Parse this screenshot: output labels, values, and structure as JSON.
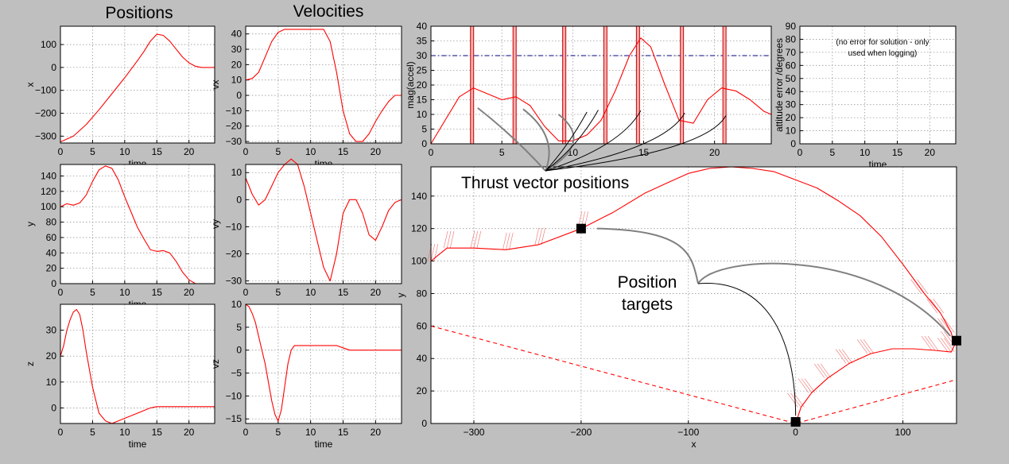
{
  "titles": {
    "positions": "Positions",
    "velocities": "Velocities"
  },
  "annotations": {
    "thrust": "Thrust vector positions",
    "targets_line1": "Position",
    "targets_line2": "targets",
    "note_line1": "(no error for solution - only",
    "note_line2": "used when logging)"
  },
  "colors": {
    "series": "#ff0000",
    "limit": "#000080",
    "path_grey": "#808080",
    "path_black": "#000000",
    "bg": "#bfbfbf"
  },
  "chart_data": [
    {
      "id": "x",
      "type": "line",
      "xlabel": "time",
      "ylabel": "x",
      "xlim": [
        0,
        24
      ],
      "ylim": [
        -330,
        180
      ],
      "xticks": [
        0,
        5,
        10,
        15,
        20
      ],
      "yticks": [
        100,
        0,
        -100,
        -200,
        -300
      ],
      "series": [
        {
          "x": [
            0,
            2,
            4,
            6,
            8,
            10,
            12,
            13,
            14,
            15,
            16,
            17,
            18,
            19,
            20,
            21,
            22,
            23,
            24
          ],
          "y": [
            -325,
            -300,
            -250,
            -185,
            -115,
            -45,
            30,
            70,
            115,
            145,
            140,
            115,
            80,
            45,
            20,
            5,
            0,
            0,
            0
          ]
        }
      ]
    },
    {
      "id": "vx",
      "type": "line",
      "xlabel": "time",
      "ylabel": "vx",
      "xlim": [
        0,
        24
      ],
      "ylim": [
        -31,
        45
      ],
      "xticks": [
        0,
        5,
        10,
        15,
        20
      ],
      "yticks": [
        40,
        30,
        20,
        10,
        0,
        -10,
        -20,
        -30
      ],
      "series": [
        {
          "x": [
            0,
            1,
            2,
            3,
            4,
            5,
            6,
            8,
            10,
            12,
            13,
            14,
            15,
            16,
            17,
            18,
            19,
            20,
            21,
            22,
            23,
            24
          ],
          "y": [
            10,
            11,
            15,
            25,
            35,
            41,
            43,
            43,
            43,
            43,
            35,
            15,
            -10,
            -25,
            -30,
            -30,
            -25,
            -17,
            -10,
            -4,
            0,
            0
          ]
        }
      ]
    },
    {
      "id": "mag",
      "type": "line",
      "xlabel": "",
      "ylabel": "mag(accel)",
      "xlim": [
        0,
        24
      ],
      "ylim": [
        0,
        40
      ],
      "xticks": [
        0,
        5,
        10,
        15,
        20
      ],
      "yticks": [
        40,
        35,
        30,
        25,
        20,
        15,
        10,
        5,
        0
      ],
      "limit": 30,
      "thrust_times": [
        2.9,
        5.9,
        9.4,
        12.3,
        14.6,
        17.7,
        20.7
      ],
      "series": [
        {
          "x": [
            0,
            1,
            2,
            3,
            4,
            5,
            6,
            7,
            8,
            9,
            10,
            11,
            12,
            13,
            14,
            14.8,
            15.5,
            16.5,
            17.5,
            18.5,
            19.5,
            20.5,
            21.5,
            22.5,
            23.5,
            24
          ],
          "y": [
            0,
            8,
            16,
            19,
            17,
            15,
            16,
            13,
            6,
            1,
            1,
            3,
            8,
            18,
            30,
            36,
            33,
            20,
            8,
            7,
            15,
            19,
            18,
            15,
            11,
            10
          ]
        }
      ]
    },
    {
      "id": "att",
      "type": "line",
      "xlabel": "time",
      "ylabel": "attitude error /degrees",
      "xlim": [
        0,
        24
      ],
      "ylim": [
        0,
        90
      ],
      "xticks": [
        0,
        5,
        10,
        15,
        20
      ],
      "yticks": [
        90,
        80,
        70,
        60,
        50,
        40,
        30,
        20,
        10,
        0
      ],
      "series": []
    },
    {
      "id": "y",
      "type": "line",
      "xlabel": "time",
      "ylabel": "y",
      "xlim": [
        0,
        24
      ],
      "ylim": [
        0,
        155
      ],
      "xticks": [
        0,
        5,
        10,
        15,
        20
      ],
      "yticks": [
        140,
        120,
        100,
        80,
        60,
        40,
        20,
        0
      ],
      "series": [
        {
          "x": [
            0,
            1,
            2,
            3,
            4,
            5,
            6,
            7,
            8,
            9,
            10,
            11,
            12,
            13,
            14,
            15,
            16,
            17,
            18,
            19,
            20,
            21,
            22,
            23,
            24
          ],
          "y": [
            100,
            104,
            102,
            105,
            115,
            133,
            148,
            153,
            150,
            135,
            113,
            93,
            73,
            58,
            44,
            42,
            43,
            40,
            29,
            15,
            5,
            0,
            0,
            0,
            0
          ]
        }
      ]
    },
    {
      "id": "vy",
      "type": "line",
      "xlabel": "",
      "ylabel": "vy",
      "xlim": [
        0,
        24
      ],
      "ylim": [
        -31,
        13
      ],
      "xticks": [
        0,
        5,
        10,
        15,
        20
      ],
      "yticks": [
        10,
        0,
        -10,
        -20,
        -30
      ],
      "series": [
        {
          "x": [
            0,
            1,
            2,
            3,
            4,
            5,
            6,
            7,
            8,
            9,
            10,
            11,
            12,
            13,
            14,
            15,
            16,
            17,
            18,
            19,
            20,
            21,
            22,
            23,
            24
          ],
          "y": [
            8,
            2,
            -2,
            0,
            5,
            10,
            13,
            15,
            13,
            5,
            -5,
            -15,
            -25,
            -30,
            -20,
            -5,
            0,
            0,
            -5,
            -13,
            -15,
            -10,
            -4,
            -1,
            0
          ]
        }
      ]
    },
    {
      "id": "z",
      "type": "line",
      "xlabel": "time",
      "ylabel": "z",
      "xlim": [
        0,
        24
      ],
      "ylim": [
        -6,
        40
      ],
      "xticks": [
        0,
        5,
        10,
        15,
        20
      ],
      "yticks": [
        30,
        20,
        10,
        0
      ],
      "series": [
        {
          "x": [
            0,
            0.5,
            1,
            1.5,
            2,
            2.5,
            3,
            3.5,
            4,
            5,
            6,
            7,
            8,
            9,
            10,
            12,
            14,
            15,
            16,
            18,
            20,
            22,
            24
          ],
          "y": [
            20,
            24,
            30,
            34,
            37,
            38,
            36,
            30,
            22,
            8,
            -2,
            -5,
            -6,
            -5,
            -4,
            -2,
            0,
            0.5,
            0.5,
            0.5,
            0.5,
            0.5,
            0.5
          ]
        }
      ]
    },
    {
      "id": "vz",
      "type": "line",
      "xlabel": "time",
      "ylabel": "vz",
      "xlim": [
        0,
        24
      ],
      "ylim": [
        -16,
        10
      ],
      "xticks": [
        0,
        5,
        10,
        15,
        20
      ],
      "yticks": [
        10,
        5,
        0,
        -5,
        -10,
        -15
      ],
      "series": [
        {
          "x": [
            0,
            0.5,
            1,
            1.5,
            2,
            2.5,
            3,
            3.5,
            4,
            4.5,
            5,
            5.5,
            6,
            6.5,
            7,
            7.5,
            8,
            10,
            12,
            14,
            15,
            16,
            18,
            20,
            22,
            24
          ],
          "y": [
            10,
            9.5,
            8,
            6,
            3,
            0,
            -3,
            -7,
            -11,
            -14,
            -15.5,
            -13,
            -8,
            -3,
            0,
            1,
            1,
            1,
            1,
            1,
            0.5,
            0,
            0,
            0,
            0,
            0
          ]
        }
      ]
    },
    {
      "id": "xy",
      "type": "line",
      "xlabel": "x",
      "ylabel": "y",
      "xlim": [
        -340,
        150
      ],
      "ylim": [
        0,
        158
      ],
      "xticks": [
        -300,
        -200,
        -100,
        0,
        100
      ],
      "yticks": [
        140,
        120,
        100,
        80,
        60,
        40,
        20,
        0
      ],
      "series": [
        {
          "name": "trajectory",
          "x": [
            -340,
            -325,
            -300,
            -270,
            -240,
            -200,
            -170,
            -140,
            -120,
            -100,
            -80,
            -60,
            -40,
            -20,
            0,
            20,
            40,
            60,
            80,
            100,
            120,
            135,
            145,
            148,
            145,
            130,
            110,
            90,
            70,
            50,
            30,
            15,
            5,
            0
          ],
          "y": [
            100,
            108,
            108,
            107,
            110,
            120,
            130,
            142,
            148,
            154,
            157,
            158,
            157,
            155,
            150,
            145,
            137,
            128,
            115,
            98,
            80,
            68,
            56,
            48,
            44,
            45,
            46,
            46,
            43,
            37,
            28,
            19,
            10,
            0
          ]
        },
        {
          "name": "boundary",
          "x": [
            -340,
            0,
            150
          ],
          "y": [
            60,
            0,
            27
          ]
        }
      ],
      "targets": [
        {
          "x": -200,
          "y": 120
        },
        {
          "x": 0,
          "y": 1
        },
        {
          "x": 150,
          "y": 51
        }
      ]
    }
  ]
}
